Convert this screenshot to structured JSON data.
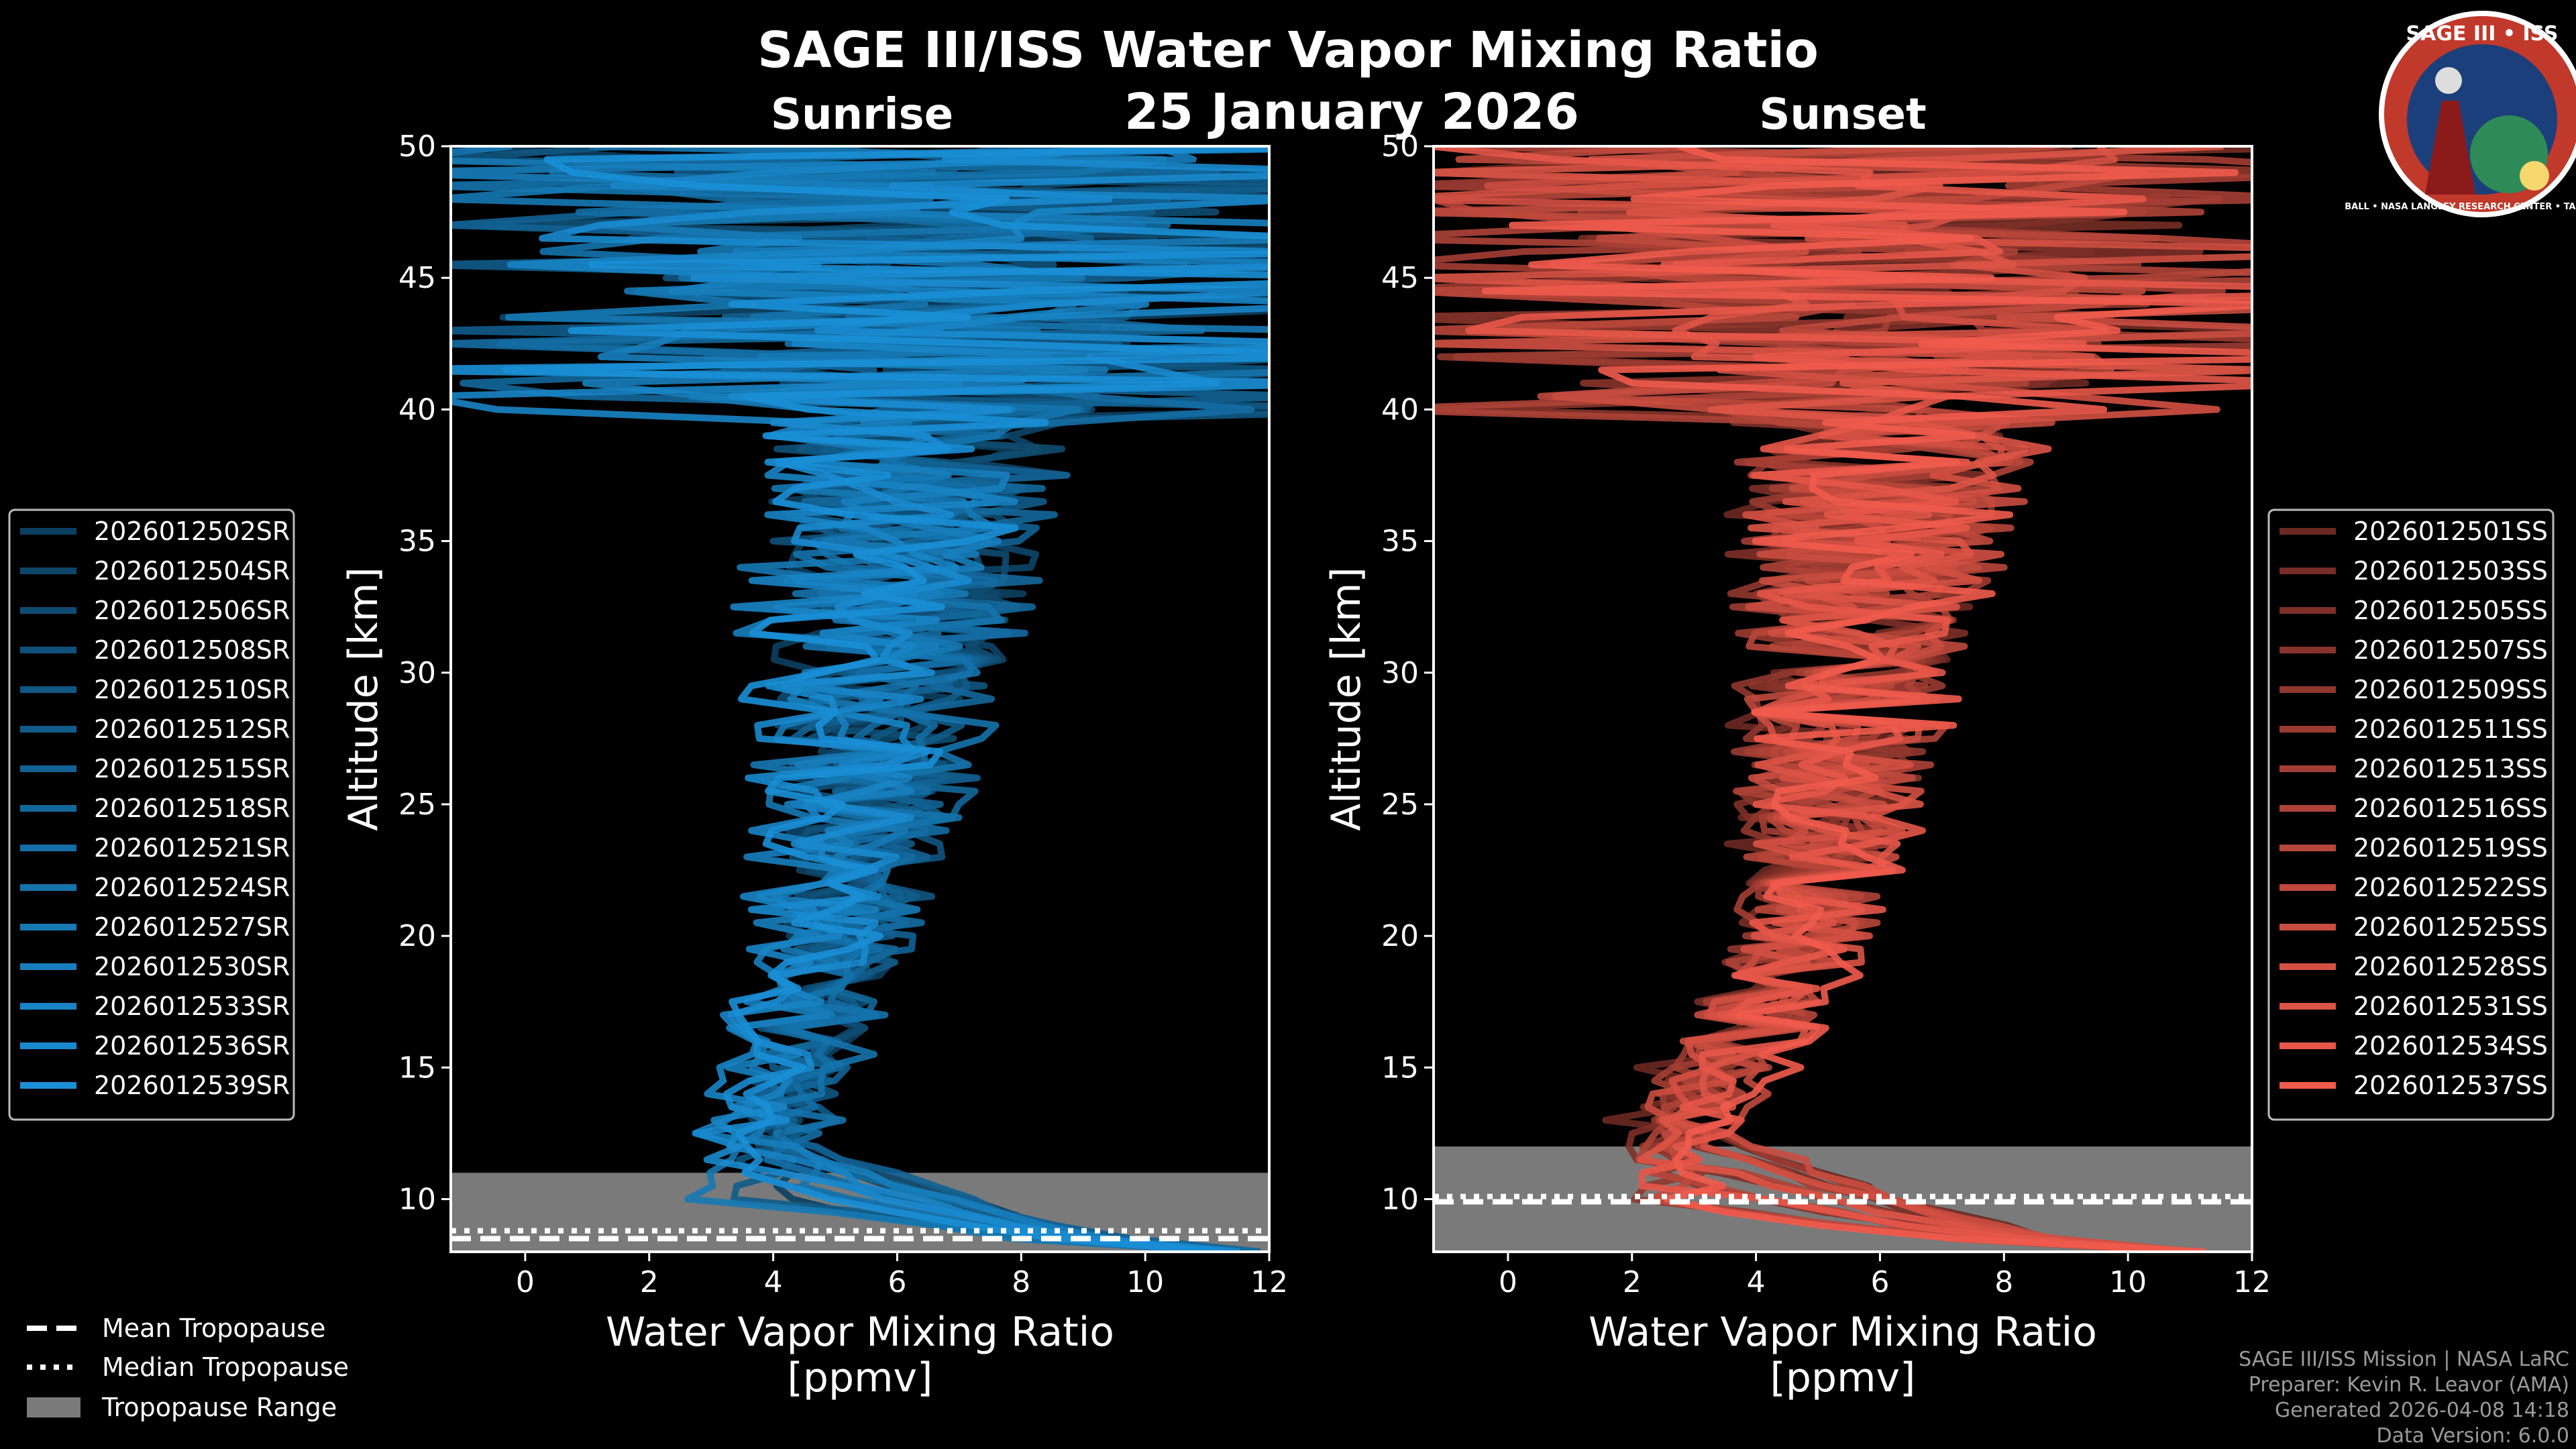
{
  "figure": {
    "title": "SAGE III/ISS Water Vapor Mixing Ratio",
    "date": "25 January 2026",
    "colors": {
      "background": "#000000",
      "tropopause_fill": "#7a7a7a",
      "sunrise": "#1a8fd6",
      "sunset": "#ef5b4c"
    }
  },
  "logo": {
    "text": "SAGE III • ISS",
    "ring_text": "BALL • NASA LANGLEY RESEARCH CENTER • TAS-I • ESA"
  },
  "chart_data": [
    {
      "type": "line",
      "panel": "Sunrise",
      "title": "Sunrise",
      "xlabel": "Water Vapor Mixing Ratio [ppmv]",
      "ylabel": "Altitude [km]",
      "xlim": [
        -1.2,
        12
      ],
      "ylim": [
        8,
        50
      ],
      "xticks": [
        0,
        2,
        4,
        6,
        8,
        10,
        12
      ],
      "yticks": [
        10,
        15,
        20,
        25,
        30,
        35,
        40,
        45,
        50
      ],
      "tropopause": {
        "range": [
          8,
          11
        ],
        "mean": 8.5,
        "median": 8.8
      },
      "profile_shape": {
        "surface_value": 11.5,
        "tropopause_min": 3.6,
        "mid_center": 5.0,
        "top_center": 6.3
      },
      "series_base_color": "#1a8fd6",
      "series": [
        {
          "name": "2026012502SR"
        },
        {
          "name": "2026012504SR"
        },
        {
          "name": "2026012506SR"
        },
        {
          "name": "2026012508SR"
        },
        {
          "name": "2026012510SR"
        },
        {
          "name": "2026012512SR"
        },
        {
          "name": "2026012515SR"
        },
        {
          "name": "2026012518SR"
        },
        {
          "name": "2026012521SR"
        },
        {
          "name": "2026012524SR"
        },
        {
          "name": "2026012527SR"
        },
        {
          "name": "2026012530SR"
        },
        {
          "name": "2026012533SR"
        },
        {
          "name": "2026012536SR"
        },
        {
          "name": "2026012539SR"
        }
      ]
    },
    {
      "type": "line",
      "panel": "Sunset",
      "title": "Sunset",
      "xlabel": "Water Vapor Mixing Ratio [ppmv]",
      "ylabel": "Altitude [km]",
      "xlim": [
        -1.2,
        12
      ],
      "ylim": [
        8,
        50
      ],
      "xticks": [
        0,
        2,
        4,
        6,
        8,
        10,
        12
      ],
      "yticks": [
        10,
        15,
        20,
        25,
        30,
        35,
        40,
        45,
        50
      ],
      "tropopause": {
        "range": [
          8,
          12
        ],
        "mean": 9.9,
        "median": 10.1
      },
      "profile_shape": {
        "surface_value": 11.0,
        "tropopause_min": 2.6,
        "mid_center": 5.0,
        "top_center": 6.5
      },
      "series_base_color": "#ef5b4c",
      "series": [
        {
          "name": "2026012501SS"
        },
        {
          "name": "2026012503SS"
        },
        {
          "name": "2026012505SS"
        },
        {
          "name": "2026012507SS"
        },
        {
          "name": "2026012509SS"
        },
        {
          "name": "2026012511SS"
        },
        {
          "name": "2026012513SS"
        },
        {
          "name": "2026012516SS"
        },
        {
          "name": "2026012519SS"
        },
        {
          "name": "2026012522SS"
        },
        {
          "name": "2026012525SS"
        },
        {
          "name": "2026012528SS"
        },
        {
          "name": "2026012531SS"
        },
        {
          "name": "2026012534SS"
        },
        {
          "name": "2026012537SS"
        }
      ]
    }
  ],
  "legend_tropopause": {
    "mean": "Mean Tropopause",
    "median": "Median Tropopause",
    "range": "Tropopause Range"
  },
  "footer": {
    "mission": "SAGE III/ISS Mission | NASA LaRC",
    "preparer": "Preparer: Kevin R. Leavor (AMA)",
    "generated": "Generated 2026-04-08 14:18",
    "version": "Data Version: 6.0.0"
  }
}
